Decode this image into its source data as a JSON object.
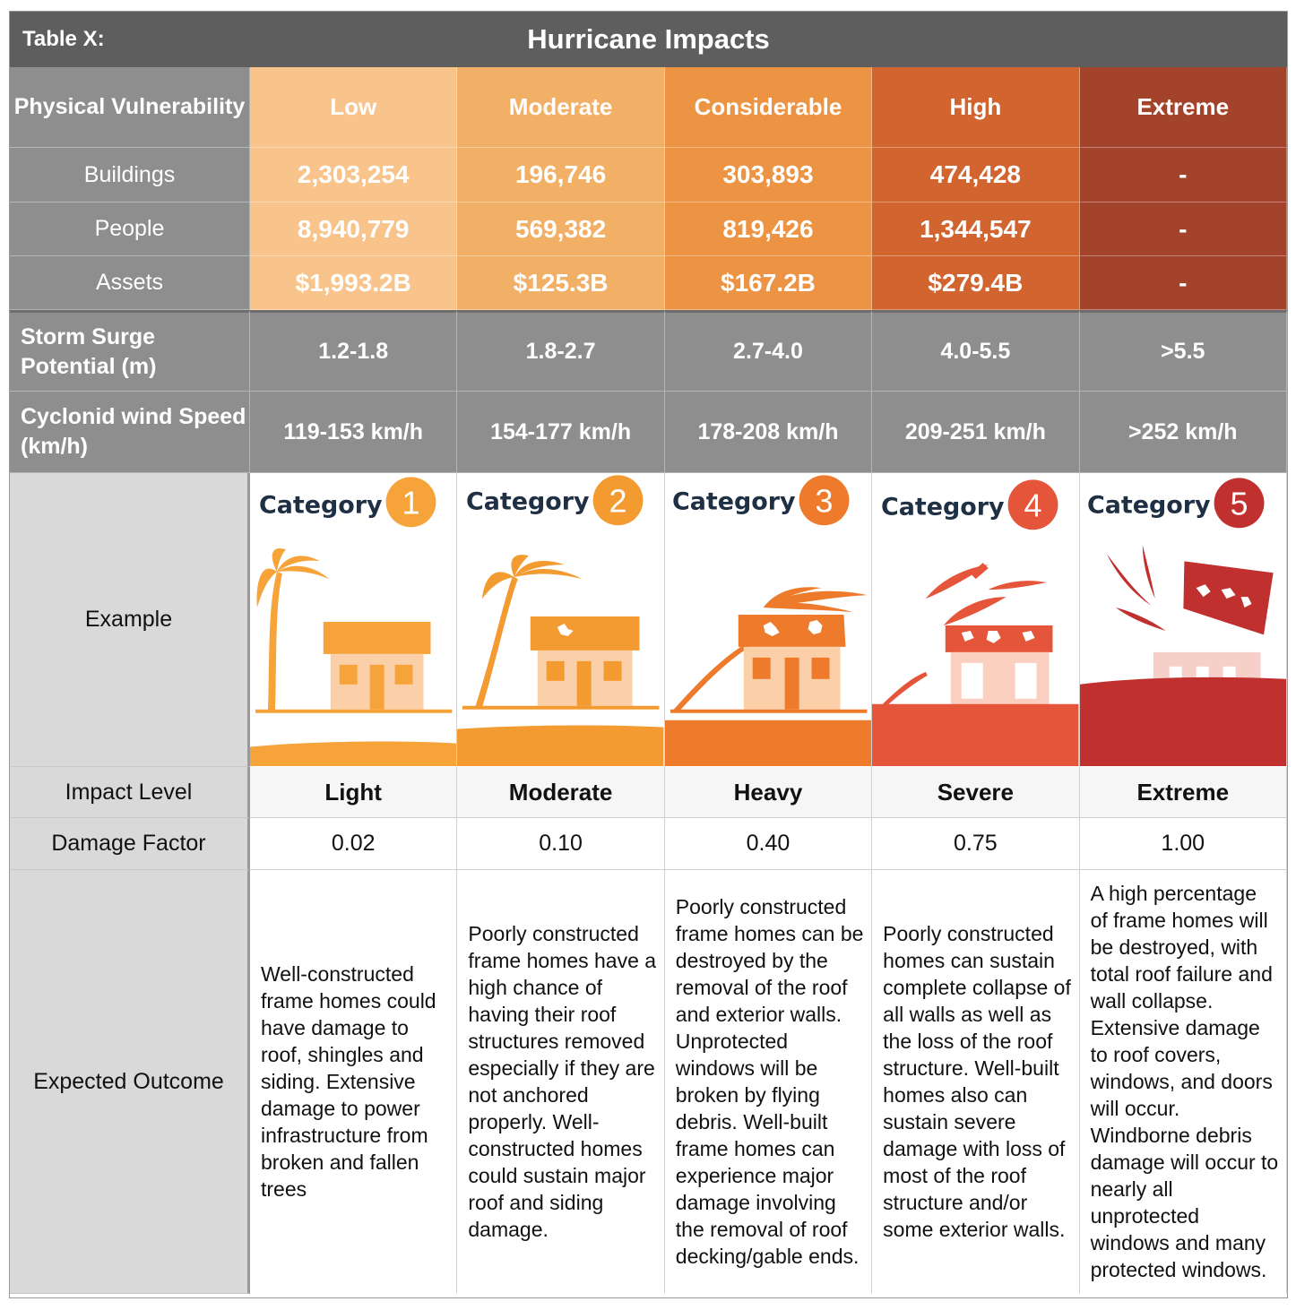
{
  "title": {
    "label": "Table X:",
    "main": "Hurricane Impacts"
  },
  "header": {
    "row_label": "Physical Vulnerability",
    "levels": [
      "Low",
      "Moderate",
      "Considerable",
      "High",
      "Extreme"
    ]
  },
  "vulnerability_rows": [
    {
      "label": "Buildings",
      "values": [
        "2,303,254",
        "196,746",
        "303,893",
        "474,428",
        "-"
      ]
    },
    {
      "label": "People",
      "values": [
        "8,940,779",
        "569,382",
        "819,426",
        "1,344,547",
        "-"
      ]
    },
    {
      "label": "Assets",
      "values": [
        "$1,993.2B",
        "$125.3B",
        "$167.2B",
        "$279.4B",
        "-"
      ]
    }
  ],
  "storm_surge": {
    "label": "Storm Surge Potential (m)",
    "values": [
      "1.2-1.8",
      "1.8-2.7",
      "2.7-4.0",
      "4.0-5.5",
      ">5.5"
    ]
  },
  "wind_speed": {
    "label": "Cyclonid wind Speed (km/h)",
    "values": [
      "119-153 km/h",
      "154-177 km/h",
      "178-208 km/h",
      "209-251 km/h",
      ">252 km/h"
    ]
  },
  "example": {
    "label": "Example",
    "category_word": "Category",
    "numbers": [
      "1",
      "2",
      "3",
      "4",
      "5"
    ]
  },
  "impact_level": {
    "label": "Impact Level",
    "values": [
      "Light",
      "Moderate",
      "Heavy",
      "Severe",
      "Extreme"
    ]
  },
  "damage_factor": {
    "label": "Damage Factor",
    "values": [
      "0.02",
      "0.10",
      "0.40",
      "0.75",
      "1.00"
    ]
  },
  "expected_outcome": {
    "label": "Expected Outcome",
    "values": [
      "Well-constructed frame homes could have damage to roof, shingles and siding. Extensive damage to power infrastructure from broken and fallen trees",
      "Poorly constructed frame homes have a high chance of having their roof structures removed especially if they are not anchored properly. Well-constructed homes could sustain major roof and siding damage.",
      "Poorly constructed frame homes can be destroyed by the removal of the roof and exterior walls. Unprotected windows will be broken by flying debris. Well-built frame homes can experience major damage involving the removal of roof decking/gable ends.",
      "Poorly constructed homes can sustain complete collapse of all walls as well as the loss of the roof structure. Well-built homes also can sustain severe damage with loss of most of the roof structure and/or some exterior walls.",
      "A high percentage of frame homes will be destroyed, with total roof failure and wall collapse. Extensive damage to roof covers, windows, and doors will occur. Windborne debris damage will occur to nearly all unprotected windows and many protected windows."
    ]
  },
  "colors": {
    "low": "#f8c48b",
    "moderate": "#f2b066",
    "considerable": "#ec9444",
    "high": "#d1642f",
    "extreme": "#a4432b",
    "cat1": "#f6a43a",
    "cat2": "#f39a30",
    "cat3": "#ee7a2c",
    "cat4": "#e5553a",
    "cat5": "#c0302e"
  }
}
